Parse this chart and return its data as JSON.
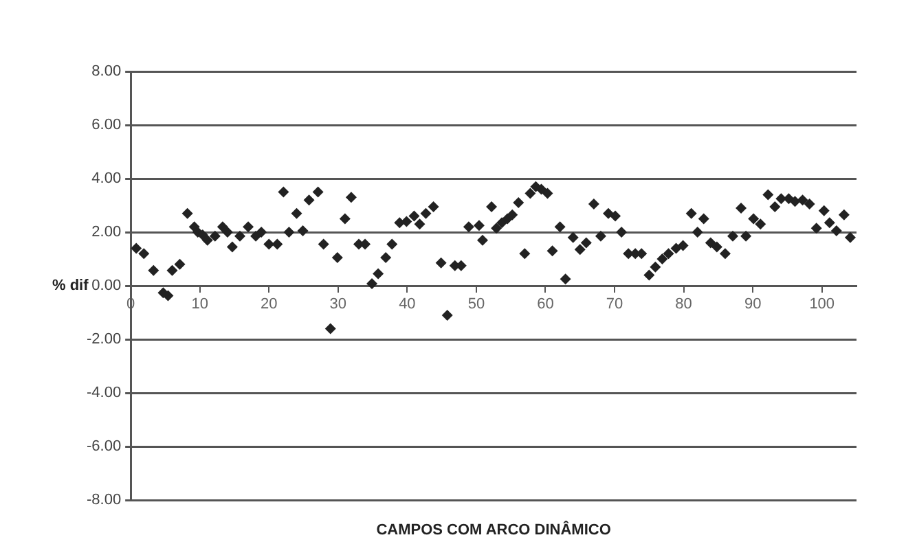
{
  "chart_data": {
    "type": "scatter",
    "xlabel": "CAMPOS COM ARCO DINÂMICO",
    "ylabel": "% dif",
    "marker": "diamond",
    "grid": "y",
    "xlim": [
      0,
      105
    ],
    "xticks": [
      0,
      10,
      20,
      30,
      40,
      50,
      60,
      70,
      80,
      90,
      100
    ],
    "ylim": [
      -8,
      8
    ],
    "yticks": [
      {
        "value": -8,
        "label": "-8.00"
      },
      {
        "value": -6,
        "label": "-6.00"
      },
      {
        "value": -4,
        "label": "-4.00"
      },
      {
        "value": -2,
        "label": "-2.00"
      },
      {
        "value": 0,
        "label": "0.00"
      },
      {
        "value": 2,
        "label": "2.00"
      },
      {
        "value": 4,
        "label": "4.00"
      },
      {
        "value": 6,
        "label": "6.00"
      },
      {
        "value": 8,
        "label": "8.00"
      }
    ],
    "series": [
      {
        "color": "#222222",
        "x": [
          0.8,
          1.9,
          3.3,
          4.7,
          5.4,
          6.0,
          7.1,
          8.2,
          9.2,
          9.7,
          10.4,
          11.1,
          12.2,
          13.3,
          14.0,
          14.7,
          15.8,
          17.0,
          18.1,
          18.9,
          20.0,
          21.2,
          22.1,
          22.9,
          24.0,
          24.9,
          25.8,
          27.1,
          27.9,
          28.9,
          29.9,
          31.0,
          31.9,
          33.0,
          33.9,
          34.9,
          35.8,
          36.9,
          37.8,
          38.9,
          39.9,
          41.0,
          41.8,
          42.7,
          43.8,
          44.9,
          45.8,
          46.9,
          47.8,
          48.9,
          50.4,
          50.9,
          52.2,
          52.9,
          53.7,
          54.5,
          55.2,
          56.1,
          57.0,
          57.8,
          58.6,
          59.4,
          60.3,
          61.0,
          62.1,
          62.9,
          64.0,
          65.0,
          65.9,
          67.0,
          68.0,
          69.1,
          70.1,
          71.0,
          72.0,
          73.0,
          73.9,
          75.0,
          75.9,
          76.9,
          77.8,
          78.9,
          79.9,
          81.1,
          82.0,
          82.9,
          83.9,
          84.8,
          86.0,
          87.1,
          88.3,
          89.0,
          90.1,
          91.1,
          92.2,
          93.2,
          94.1,
          95.2,
          96.1,
          97.2,
          98.2,
          99.2,
          100.3,
          101.1,
          102.1,
          103.2,
          104.1
        ],
        "values": [
          1.4,
          1.2,
          0.57,
          -0.26,
          -0.37,
          0.57,
          0.8,
          2.7,
          2.2,
          2.0,
          1.9,
          1.7,
          1.85,
          2.2,
          2.0,
          1.45,
          1.85,
          2.2,
          1.85,
          2.0,
          1.55,
          1.55,
          3.5,
          2.0,
          2.7,
          2.05,
          3.2,
          3.5,
          1.55,
          -1.6,
          1.05,
          2.5,
          3.3,
          1.55,
          1.55,
          0.08,
          0.45,
          1.05,
          1.55,
          2.35,
          2.4,
          2.6,
          2.3,
          2.7,
          2.95,
          0.85,
          -1.1,
          0.75,
          0.75,
          2.2,
          2.25,
          1.7,
          2.95,
          2.15,
          2.35,
          2.5,
          2.65,
          3.1,
          1.2,
          3.45,
          3.7,
          3.6,
          3.45,
          1.3,
          2.2,
          0.25,
          1.8,
          1.35,
          1.6,
          3.05,
          1.85,
          2.7,
          2.6,
          2.0,
          1.2,
          1.2,
          1.2,
          0.4,
          0.7,
          1.0,
          1.2,
          1.4,
          1.5,
          2.7,
          2.0,
          2.5,
          1.6,
          1.45,
          1.2,
          1.85,
          2.9,
          1.85,
          2.5,
          2.3,
          3.4,
          2.95,
          3.25,
          3.25,
          3.15,
          3.2,
          3.05,
          2.15,
          2.8,
          2.35,
          2.05,
          2.65,
          1.8
        ]
      }
    ]
  }
}
